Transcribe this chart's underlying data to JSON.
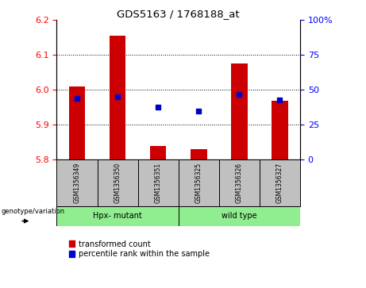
{
  "title": "GDS5163 / 1768188_at",
  "samples": [
    "GSM1356349",
    "GSM1356350",
    "GSM1356351",
    "GSM1356325",
    "GSM1356326",
    "GSM1356327"
  ],
  "group_labels": [
    "Hpx- mutant",
    "wild type"
  ],
  "bar_bottoms": [
    5.8,
    5.8,
    5.8,
    5.8,
    5.8,
    5.8
  ],
  "bar_tops": [
    6.01,
    6.155,
    5.84,
    5.83,
    6.075,
    5.97
  ],
  "percentile_values": [
    44,
    45,
    38,
    35,
    47,
    43
  ],
  "ylim_left": [
    5.8,
    6.2
  ],
  "ylim_right": [
    0,
    100
  ],
  "yticks_left": [
    5.8,
    5.9,
    6.0,
    6.1,
    6.2
  ],
  "yticks_right": [
    0,
    25,
    50,
    75,
    100
  ],
  "bar_color": "#CC0000",
  "dot_color": "#0000CC",
  "bar_width": 0.4,
  "group_bg": "#c0c0c0",
  "group_green": "#90EE90",
  "legend_red_label": "transformed count",
  "legend_blue_label": "percentile rank within the sample",
  "genotype_label": "genotype/variation"
}
